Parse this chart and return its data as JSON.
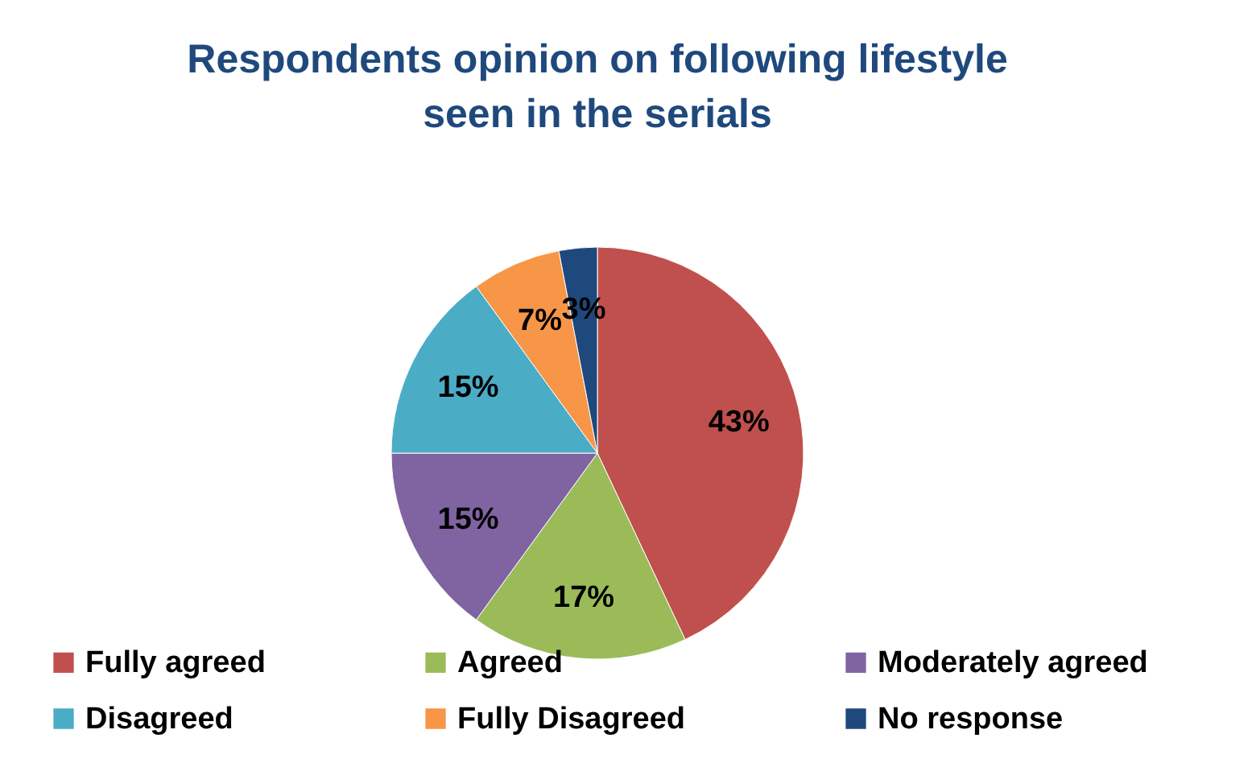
{
  "chart_data": {
    "type": "pie",
    "title": "Respondents opinion on following lifestyle seen in the serials",
    "categories": [
      "Fully agreed",
      "Agreed",
      "Moderately agreed",
      "Disagreed",
      "Fully Disagreed",
      "No response"
    ],
    "values": [
      43,
      17,
      15,
      15,
      7,
      3
    ],
    "value_labels": [
      "43%",
      "17%",
      "15%",
      "15%",
      "7%",
      "3%"
    ],
    "colors": [
      "#c0504d",
      "#9bbb59",
      "#8064a2",
      "#4bacc6",
      "#f79646",
      "#1f497d"
    ],
    "legend": "bottom"
  }
}
